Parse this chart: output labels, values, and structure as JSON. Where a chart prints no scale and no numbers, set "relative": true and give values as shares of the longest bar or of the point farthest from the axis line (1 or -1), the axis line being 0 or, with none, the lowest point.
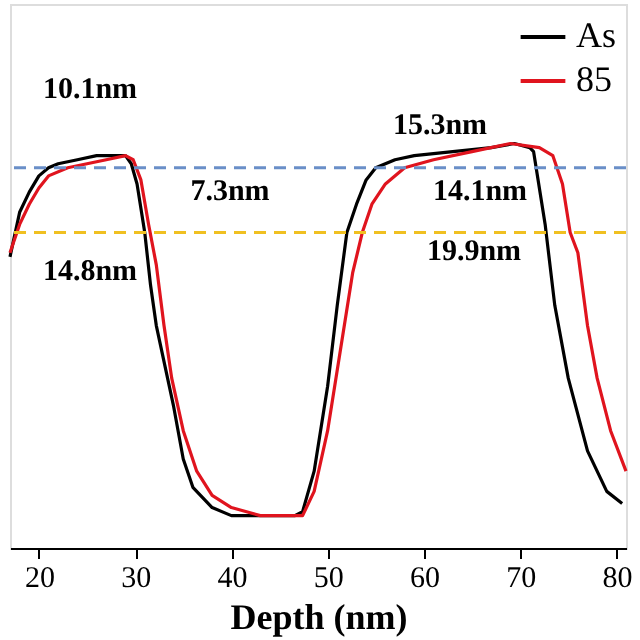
{
  "chart_data": {
    "type": "line",
    "relative": true,
    "xlabel": "Depth (nm)",
    "xlim": [
      17,
      81
    ],
    "xticks": [
      20,
      30,
      40,
      50,
      60,
      70,
      80
    ],
    "grid": false,
    "legend": "top right",
    "line_style": "solid",
    "marker": "none",
    "series": [
      {
        "name": "As",
        "color": "#000000",
        "x": [
          17,
          18,
          19,
          20,
          21,
          22,
          24,
          26,
          28,
          29,
          29.6,
          30.2,
          31,
          31.6,
          32.2,
          34,
          35,
          36,
          38,
          40,
          43,
          46.6,
          47.4,
          48.6,
          50,
          51,
          52,
          53,
          54,
          55,
          57,
          59,
          63,
          67,
          69.4,
          71,
          71.4,
          72.6,
          73.6,
          75,
          77,
          79,
          80.6
        ],
        "values": [
          0.72,
          0.83,
          0.88,
          0.92,
          0.94,
          0.95,
          0.96,
          0.97,
          0.97,
          0.97,
          0.95,
          0.9,
          0.78,
          0.65,
          0.55,
          0.35,
          0.22,
          0.15,
          0.1,
          0.08,
          0.08,
          0.08,
          0.09,
          0.19,
          0.4,
          0.6,
          0.78,
          0.85,
          0.91,
          0.94,
          0.96,
          0.97,
          0.98,
          0.99,
          1.0,
          0.99,
          0.98,
          0.8,
          0.6,
          0.42,
          0.24,
          0.14,
          0.11
        ]
      },
      {
        "name": "85",
        "color": "#e0141e",
        "x": [
          17,
          18,
          19,
          20,
          21,
          23,
          25,
          27,
          29,
          29.8,
          30.6,
          31.4,
          32.2,
          33,
          33.8,
          35,
          36.4,
          38,
          40,
          43,
          46,
          47.4,
          48.6,
          50,
          51.4,
          52.6,
          53.6,
          54.6,
          56,
          58,
          61,
          65,
          69,
          72,
          73.4,
          74.4,
          75.2,
          76,
          77,
          78,
          79.4,
          81
        ],
        "values": [
          0.73,
          0.8,
          0.85,
          0.89,
          0.92,
          0.94,
          0.95,
          0.96,
          0.97,
          0.96,
          0.91,
          0.8,
          0.7,
          0.55,
          0.42,
          0.29,
          0.19,
          0.13,
          0.1,
          0.08,
          0.08,
          0.08,
          0.14,
          0.29,
          0.5,
          0.68,
          0.78,
          0.85,
          0.9,
          0.94,
          0.96,
          0.98,
          1.0,
          0.99,
          0.97,
          0.9,
          0.78,
          0.73,
          0.55,
          0.42,
          0.29,
          0.19
        ]
      }
    ],
    "ref_lines": [
      {
        "axis": "y",
        "value": 0.94,
        "color": "#6a8fc8",
        "line_style": "dashed"
      },
      {
        "axis": "y",
        "value": 0.78,
        "color": "#f0c020",
        "line_style": "dashed"
      }
    ],
    "annotations": [
      "10.1nm",
      "7.3nm",
      "14.8nm",
      "15.3nm",
      "14.1nm",
      "19.9nm"
    ]
  }
}
